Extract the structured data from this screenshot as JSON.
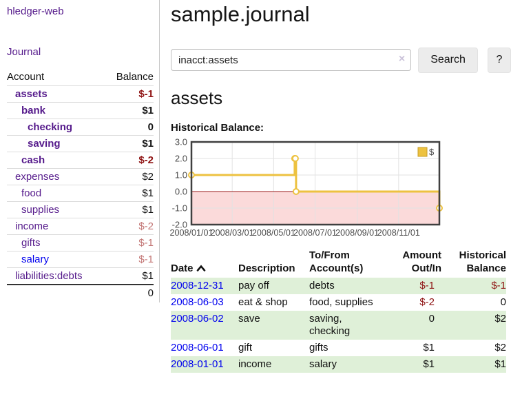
{
  "colors": {
    "accent_purple": "#551A8B",
    "link_blue": "#0000EE",
    "negative_strong": "#8e1212",
    "negative_muted": "#c27574",
    "row_stripe_green": "#dff0d8",
    "chart_line_yellow": "#EDC240",
    "chart_negative_fill": "#fbdada",
    "chart_zero_line": "#991b1b"
  },
  "sidebar": {
    "brand": "hledger-web",
    "nav_journal": "Journal",
    "accounts": {
      "col_account": "Account",
      "col_balance": "Balance",
      "rows": [
        {
          "name": "assets",
          "depth": 1,
          "bold": true,
          "balance": "$-1",
          "balance_class": "neg-strong",
          "link_class": ""
        },
        {
          "name": "bank",
          "depth": 2,
          "bold": true,
          "balance": "$1",
          "balance_class": "",
          "link_class": ""
        },
        {
          "name": "checking",
          "depth": 3,
          "bold": true,
          "balance": "0",
          "balance_class": "",
          "link_class": ""
        },
        {
          "name": "saving",
          "depth": 3,
          "bold": true,
          "balance": "$1",
          "balance_class": "",
          "link_class": ""
        },
        {
          "name": "cash",
          "depth": 2,
          "bold": true,
          "balance": "$-2",
          "balance_class": "neg-strong",
          "link_class": ""
        },
        {
          "name": "expenses",
          "depth": 1,
          "bold": false,
          "balance": "$2",
          "balance_class": "",
          "link_class": ""
        },
        {
          "name": "food",
          "depth": 2,
          "bold": false,
          "balance": "$1",
          "balance_class": "",
          "link_class": ""
        },
        {
          "name": "supplies",
          "depth": 2,
          "bold": false,
          "balance": "$1",
          "balance_class": "",
          "link_class": ""
        },
        {
          "name": "income",
          "depth": 1,
          "bold": false,
          "balance": "$-2",
          "balance_class": "neg-muted",
          "link_class": ""
        },
        {
          "name": "gifts",
          "depth": 2,
          "bold": false,
          "balance": "$-1",
          "balance_class": "neg-muted",
          "link_class": ""
        },
        {
          "name": "salary",
          "depth": 2,
          "bold": false,
          "balance": "$-1",
          "balance_class": "neg-muted",
          "link_class": "blue"
        },
        {
          "name": "liabilities:debts",
          "depth": 1,
          "bold": false,
          "balance": "$1",
          "balance_class": "",
          "link_class": ""
        }
      ],
      "total": "0"
    }
  },
  "header": {
    "title": "sample.journal"
  },
  "search": {
    "value": "inacct:assets",
    "clear_icon": "×",
    "button": "Search",
    "help": "?"
  },
  "account_view": {
    "heading": "assets",
    "chart_title": "Historical Balance:"
  },
  "chart_data": {
    "type": "line",
    "step": true,
    "title": "Historical Balance:",
    "series": [
      {
        "name": "$",
        "color": "#EDC240",
        "points": [
          [
            "2008-01-01",
            1
          ],
          [
            "2008-06-01",
            2
          ],
          [
            "2008-06-02",
            2
          ],
          [
            "2008-06-03",
            0
          ],
          [
            "2008-12-31",
            -1
          ]
        ]
      }
    ],
    "x_domain": [
      "2008-01-01",
      "2008-12-31"
    ],
    "ylim": [
      -2,
      3
    ],
    "x_ticks": [
      {
        "date": "2008-01-01",
        "label": "2008/01/01"
      },
      {
        "date": "2008-03-01",
        "label": "2008/03/01"
      },
      {
        "date": "2008-05-01",
        "label": "2008/05/01"
      },
      {
        "date": "2008-07-01",
        "label": "2008/07/01"
      },
      {
        "date": "2008-09-01",
        "label": "2008/09/01"
      },
      {
        "date": "2008-11-01",
        "label": "2008/11/01"
      }
    ],
    "y_ticks": [
      {
        "v": 3,
        "label": "3.0"
      },
      {
        "v": 2,
        "label": "2.0"
      },
      {
        "v": 1,
        "label": "1.0"
      },
      {
        "v": 0,
        "label": "0.0"
      },
      {
        "v": -1,
        "label": "-1.0"
      },
      {
        "v": -2,
        "label": "-2.0"
      }
    ],
    "grid": true,
    "legend": {
      "label": "$",
      "position": "top-right"
    },
    "negative_region_fill": "#fbdada",
    "zero_line_color": "#991b1b"
  },
  "register": {
    "headers": [
      {
        "l1": "Date",
        "l2": "",
        "align": "left",
        "sort": "asc",
        "sort_icon": "caret-up"
      },
      {
        "l1": "Description",
        "l2": "",
        "align": "left",
        "sort": ""
      },
      {
        "l1": "To/From",
        "l2": "Account(s)",
        "align": "left",
        "sort": ""
      },
      {
        "l1": "Amount",
        "l2": "Out/In",
        "align": "right",
        "sort": ""
      },
      {
        "l1": "Historical",
        "l2": "Balance",
        "align": "right",
        "sort": ""
      }
    ],
    "rows": [
      {
        "date": "2008-12-31",
        "description": "pay off",
        "accounts": "debts",
        "amount": "$-1",
        "amount_class": "neg",
        "balance": "$-1",
        "balance_class": "neg"
      },
      {
        "date": "2008-06-03",
        "description": "eat & shop",
        "accounts": "food, supplies",
        "amount": "$-2",
        "amount_class": "neg",
        "balance": "0",
        "balance_class": ""
      },
      {
        "date": "2008-06-02",
        "description": "save",
        "accounts": "saving, checking",
        "amount": "0",
        "amount_class": "",
        "balance": "$2",
        "balance_class": ""
      },
      {
        "date": "2008-06-01",
        "description": "gift",
        "accounts": "gifts",
        "amount": "$1",
        "amount_class": "",
        "balance": "$2",
        "balance_class": ""
      },
      {
        "date": "2008-01-01",
        "description": "income",
        "accounts": "salary",
        "amount": "$1",
        "amount_class": "",
        "balance": "$1",
        "balance_class": ""
      }
    ]
  }
}
